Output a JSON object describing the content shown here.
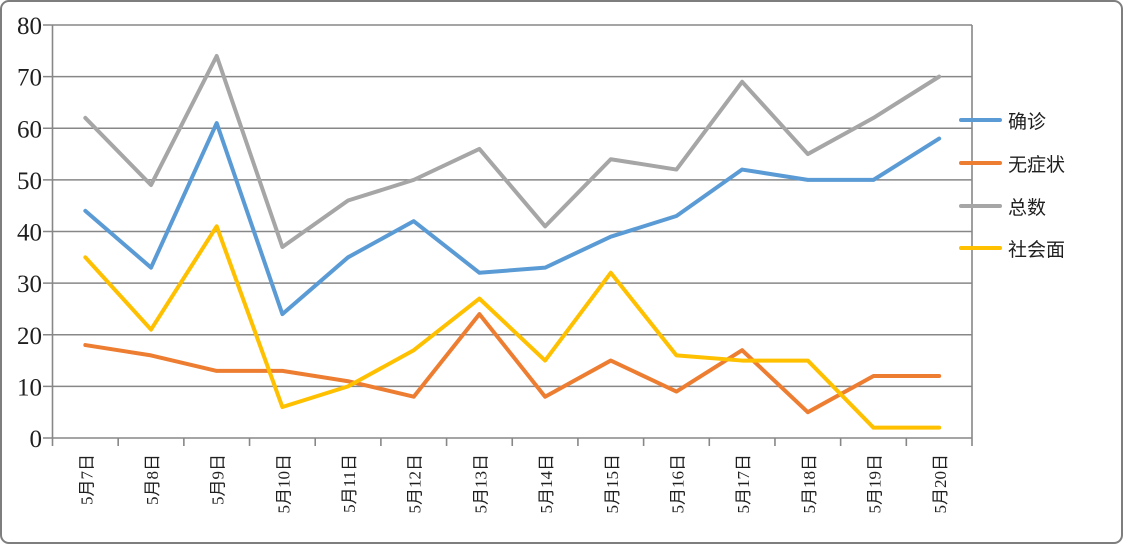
{
  "chart_data": {
    "type": "line",
    "title": "",
    "categories": [
      "5月7日",
      "5月8日",
      "5月9日",
      "5月10日",
      "5月11日",
      "5月12日",
      "5月13日",
      "5月14日",
      "5月15日",
      "5月16日",
      "5月17日",
      "5月18日",
      "5月19日",
      "5月20日"
    ],
    "series": [
      {
        "name": "确诊",
        "color": "#5B9BD5",
        "values": [
          44,
          33,
          61,
          24,
          35,
          42,
          32,
          33,
          39,
          43,
          52,
          50,
          50,
          58
        ]
      },
      {
        "name": "无症状",
        "color": "#ED7D31",
        "values": [
          18,
          16,
          13,
          13,
          11,
          8,
          24,
          8,
          15,
          9,
          17,
          5,
          12,
          12
        ]
      },
      {
        "name": "总数",
        "color": "#A6A6A6",
        "values": [
          62,
          49,
          74,
          37,
          46,
          50,
          56,
          41,
          54,
          52,
          69,
          55,
          62,
          70
        ]
      },
      {
        "name": "社会面",
        "color": "#FFC000",
        "values": [
          35,
          21,
          41,
          6,
          10,
          17,
          27,
          15,
          32,
          16,
          15,
          15,
          2,
          2
        ]
      }
    ],
    "y_axis": {
      "min": 0,
      "max": 80,
      "step": 10,
      "ticks": [
        "0",
        "10",
        "20",
        "30",
        "40",
        "50",
        "60",
        "70",
        "80"
      ]
    },
    "xlabel": "",
    "ylabel": "",
    "grid": true,
    "legend_position": "right",
    "axis_color": "#878787",
    "text_color": "#1f1f1f"
  }
}
